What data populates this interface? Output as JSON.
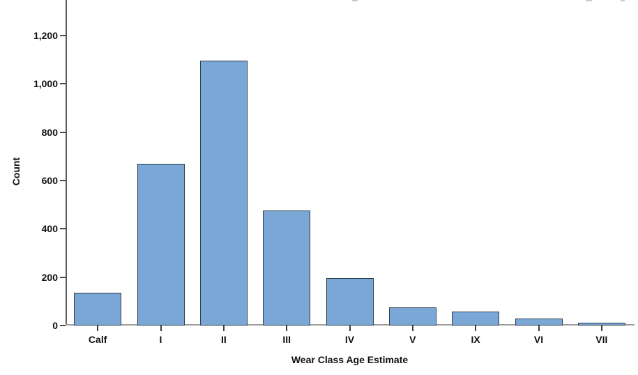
{
  "chart_data": {
    "type": "bar",
    "title": "",
    "xlabel": "Wear Class Age Estimate",
    "ylabel": "Count",
    "categories": [
      "Calf",
      "I",
      "II",
      "III",
      "IV",
      "V",
      "IX",
      "VI",
      "VII"
    ],
    "values": [
      135,
      670,
      1095,
      475,
      195,
      75,
      58,
      30,
      12
    ],
    "ylim": [
      0,
      1200
    ],
    "yticks": [
      0,
      200,
      400,
      600,
      800,
      1000,
      1200
    ],
    "ytick_labels": [
      "0",
      "200",
      "400",
      "600",
      "800",
      "1,000",
      "1,200"
    ],
    "grid": false,
    "legend": "none",
    "bar_fill_color": "#7BA7D7",
    "bar_border_color": "#2A3B4D",
    "y_axis_color": "#5A5A5A",
    "x_axis_color": "#9C9C9C"
  }
}
